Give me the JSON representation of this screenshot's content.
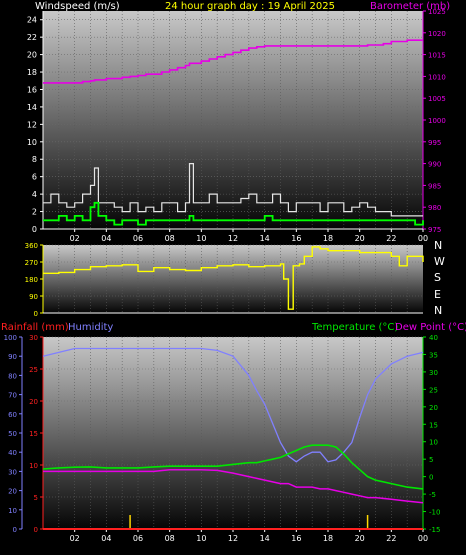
{
  "header": {
    "left_title": "Windspeed (m/s)",
    "center_title": "24 hour graph day : 19 April 2025",
    "right_title": "Barometer (mb)"
  },
  "panel2": {
    "compass": [
      "N",
      "W",
      "S",
      "E",
      "N"
    ]
  },
  "panel3": {
    "rain_label": "Rainfall (mm)",
    "humidity_label": "Humidity",
    "temp_label": "Temperature (°C)",
    "dew_label": "Dew Point (°C)"
  },
  "colors": {
    "wind_avg": "#00ff00",
    "wind_gust": "#e6e6e6",
    "barometer": "#e600e6",
    "direction": "#ffff00",
    "rain": "#ff2020",
    "rain_bars": "#ffd700",
    "humidity": "#8080ff",
    "temperature": "#00e600",
    "dew": "#e600e6"
  },
  "chart_data": [
    {
      "type": "line",
      "title": "24 hour graph day : 19 April 2025",
      "x_ticks": [
        "02",
        "04",
        "06",
        "08",
        "10",
        "12",
        "14",
        "16",
        "18",
        "20",
        "22",
        "00"
      ],
      "ylabel_left": "Windspeed (m/s)",
      "ylim_left": [
        0,
        25
      ],
      "yticks_left": [
        0,
        2,
        4,
        6,
        8,
        10,
        12,
        14,
        16,
        18,
        20,
        22,
        24
      ],
      "ylabel_right": "Barometer (mb)",
      "ylim_right": [
        975,
        1025
      ],
      "yticks_right": [
        975,
        980,
        985,
        990,
        995,
        1000,
        1005,
        1010,
        1015,
        1020,
        1025
      ],
      "x": [
        0,
        0.5,
        1,
        1.5,
        2,
        2.5,
        3,
        3.25,
        3.5,
        4,
        4.5,
        5,
        5.5,
        6,
        6.5,
        7,
        7.5,
        8,
        8.5,
        9,
        9.25,
        9.5,
        10,
        10.5,
        11,
        11.5,
        12,
        12.5,
        13,
        13.5,
        14,
        14.5,
        15,
        15.5,
        16,
        16.5,
        17,
        17.5,
        18,
        18.5,
        19,
        19.5,
        20,
        20.5,
        21,
        21.5,
        22,
        22.5,
        23,
        23.5,
        24
      ],
      "series": [
        {
          "name": "Windspeed (m/s)",
          "axis": "left",
          "values": [
            1,
            1,
            1.5,
            1,
            1.5,
            1,
            2.5,
            3,
            1.5,
            1,
            0.5,
            1,
            1,
            0.5,
            1,
            1,
            1,
            1,
            1,
            1,
            1.5,
            1,
            1,
            1,
            1,
            1,
            1,
            1,
            1,
            1,
            1.5,
            1,
            1,
            1,
            1,
            1,
            1,
            1,
            1,
            1,
            1,
            1,
            1,
            1,
            1,
            1,
            1,
            1,
            1,
            0.5,
            1
          ]
        },
        {
          "name": "Gust",
          "axis": "left",
          "values": [
            3,
            4,
            3,
            2.5,
            3,
            4,
            5,
            7,
            3,
            3,
            2.5,
            2,
            3,
            2,
            2.5,
            2,
            3,
            3,
            2,
            3,
            7.5,
            3,
            3,
            4,
            3,
            3,
            3,
            3.5,
            4,
            3,
            3,
            4,
            3,
            2,
            3,
            3,
            3,
            2,
            3,
            3,
            2,
            2.5,
            3,
            2.5,
            2,
            2,
            1.5,
            1.5,
            1.5,
            1.5,
            1.5
          ]
        },
        {
          "name": "Barometer (mb)",
          "axis": "right",
          "values": [
            1008.5,
            1008.5,
            1008.5,
            1008.5,
            1008.5,
            1008.8,
            1009,
            1009.2,
            1009.2,
            1009.5,
            1009.5,
            1009.8,
            1010,
            1010.2,
            1010.5,
            1010.5,
            1011,
            1011.5,
            1012,
            1012.5,
            1013,
            1013,
            1013.5,
            1014,
            1014.5,
            1015,
            1015.5,
            1016,
            1016.5,
            1016.8,
            1017,
            1017,
            1017,
            1017,
            1017,
            1017,
            1017,
            1017,
            1017,
            1017,
            1017,
            1017,
            1017,
            1017.2,
            1017.2,
            1017.5,
            1018,
            1018,
            1018.3,
            1018.3,
            1018.3
          ]
        }
      ]
    },
    {
      "type": "line",
      "x_ticks": [
        "02",
        "04",
        "06",
        "08",
        "10",
        "12",
        "14",
        "16",
        "18",
        "20",
        "22",
        "00"
      ],
      "ylim": [
        0,
        360
      ],
      "yticks": [
        0,
        90,
        180,
        270,
        360
      ],
      "x": [
        0,
        1,
        2,
        3,
        4,
        5,
        6,
        7,
        8,
        9,
        10,
        11,
        12,
        13,
        14,
        15,
        15.2,
        15.5,
        15.8,
        16.2,
        16.5,
        17,
        17.5,
        18,
        19,
        20,
        21,
        22,
        22.5,
        23,
        24
      ],
      "series": [
        {
          "name": "Wind direction",
          "values": [
            210,
            215,
            230,
            245,
            250,
            255,
            220,
            240,
            230,
            225,
            240,
            250,
            255,
            245,
            250,
            260,
            180,
            20,
            250,
            260,
            300,
            350,
            340,
            330,
            330,
            320,
            320,
            300,
            250,
            300,
            270
          ]
        }
      ]
    },
    {
      "type": "line",
      "x_ticks": [
        "02",
        "04",
        "06",
        "08",
        "10",
        "12",
        "14",
        "16",
        "18",
        "20",
        "22",
        "00"
      ],
      "ylabel_left": "Rainfall (mm)",
      "ylim_rain": [
        0,
        30
      ],
      "yticks_rain": [
        0,
        5,
        10,
        15,
        20,
        25,
        30
      ],
      "ylim_humidity": [
        0,
        100
      ],
      "yticks_humidity": [
        0,
        10,
        20,
        30,
        40,
        50,
        60,
        70,
        80,
        90,
        100
      ],
      "ylabel_right": "Temperature (°C)",
      "ylim_temp": [
        -15,
        40
      ],
      "yticks_temp": [
        -15,
        -10,
        -5,
        0,
        5,
        10,
        15,
        20,
        25,
        30,
        35,
        40
      ],
      "x": [
        0,
        1,
        2,
        3,
        4,
        5,
        6,
        7,
        8,
        9,
        10,
        11,
        12,
        13,
        13.5,
        14,
        14.5,
        15,
        15.5,
        16,
        16.5,
        17,
        17.5,
        18,
        18.5,
        19,
        19.5,
        20,
        20.5,
        21,
        22,
        23,
        24
      ],
      "series": [
        {
          "name": "Humidity",
          "axis": "humidity",
          "values": [
            90,
            92,
            94,
            94,
            94,
            94,
            94,
            94,
            94,
            94,
            94,
            93,
            90,
            80,
            72,
            65,
            55,
            45,
            38,
            35,
            38,
            40,
            40,
            35,
            36,
            40,
            45,
            58,
            70,
            78,
            86,
            90,
            92
          ]
        },
        {
          "name": "Temperature (°C)",
          "axis": "temp",
          "values": [
            2.2,
            2.5,
            2.7,
            2.8,
            2.5,
            2.5,
            2.5,
            2.8,
            3,
            3,
            3,
            3,
            3.5,
            4,
            4,
            4.5,
            5,
            5.5,
            6.5,
            7.5,
            8.5,
            9,
            9,
            9,
            8.5,
            6.5,
            4,
            2,
            0,
            -1,
            -2,
            -3,
            -3.5
          ]
        },
        {
          "name": "Dew Point (°C)",
          "axis": "temp",
          "values": [
            1.5,
            1.5,
            1.5,
            1.5,
            1.5,
            1.5,
            1.5,
            1.5,
            2,
            2,
            2,
            1.8,
            1,
            0,
            -0.5,
            -1,
            -1.5,
            -2,
            -2,
            -3,
            -3,
            -3,
            -3.5,
            -3.5,
            -4,
            -4.5,
            -5,
            -5.5,
            -6,
            -6,
            -6.5,
            -7,
            -7.5
          ]
        }
      ],
      "rainfall": {
        "name": "Rainfall (mm)",
        "values": [
          0,
          0,
          0,
          0,
          0,
          0,
          0,
          0,
          0,
          0,
          0,
          0,
          0,
          0,
          0,
          0,
          0,
          0,
          0,
          0,
          0,
          0,
          0,
          0,
          0,
          0,
          0,
          0,
          0,
          0,
          0,
          0,
          0
        ]
      },
      "rain_marks_hours": [
        5.5,
        20.5
      ]
    }
  ]
}
